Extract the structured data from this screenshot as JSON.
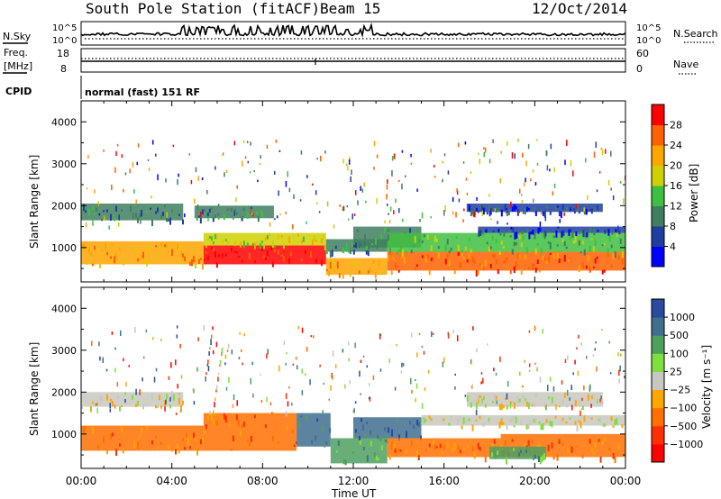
{
  "header": {
    "station": "South Pole Station (fitACF)",
    "beam": "Beam 15",
    "date": "12/Oct/2014"
  },
  "panels": {
    "nsky": {
      "label": "N.Sky",
      "ticks": [
        "10^5",
        "10^0"
      ],
      "right_ticks": [
        "10^5",
        "10^0"
      ],
      "right_label": "N.Search"
    },
    "freq": {
      "label_line1": "Freq.",
      "label_line2": "[MHz]",
      "ticks": [
        "18",
        "8"
      ],
      "right_ticks": [
        "60",
        "0"
      ],
      "right_label": "Nave"
    },
    "cpid": {
      "label": "CPID",
      "value": "normal (fast) 151 RF"
    }
  },
  "colors": {
    "power_scale": [
      "#0000ff",
      "#1f3fa0",
      "#3f7f5f",
      "#3fbf3f",
      "#d0d000",
      "#ffa500",
      "#ff6000",
      "#ff0000"
    ],
    "velocity_scale": [
      "#2a4aa0",
      "#3f6f8f",
      "#4f9f5f",
      "#7fdf3f",
      "#c8c8c0",
      "#ffa500",
      "#ff7000",
      "#ff3000",
      "#ff0000"
    ],
    "axis": "#000000"
  },
  "chart_data": [
    {
      "type": "heatmap",
      "ylabel": "Slant Range [km]",
      "colorbar_label": "Power [dB]",
      "colorbar_ticks": [
        "4",
        "8",
        "12",
        "16",
        "20",
        "24",
        "28"
      ],
      "ylim": [
        180,
        4500
      ],
      "yticks": [
        "1000",
        "2000",
        "3000",
        "4000"
      ],
      "xlim": [
        0,
        24
      ],
      "bands": [
        {
          "t0": 0.0,
          "t1": 5.4,
          "r0": 600,
          "r1": 1150,
          "level": 5
        },
        {
          "t0": 0.0,
          "t1": 4.5,
          "r0": 1650,
          "r1": 2050,
          "level": 2
        },
        {
          "t0": 5.4,
          "t1": 10.8,
          "r0": 600,
          "r1": 1050,
          "level": 7
        },
        {
          "t0": 5.4,
          "t1": 10.8,
          "r0": 1050,
          "r1": 1350,
          "level": 4
        },
        {
          "t0": 5.0,
          "t1": 8.5,
          "r0": 1700,
          "r1": 2000,
          "level": 2
        },
        {
          "t0": 10.8,
          "t1": 13.5,
          "r0": 350,
          "r1": 750,
          "level": 5
        },
        {
          "t0": 10.8,
          "t1": 13.5,
          "r0": 900,
          "r1": 1200,
          "level": 2
        },
        {
          "t0": 12.0,
          "t1": 15.0,
          "r0": 1000,
          "r1": 1500,
          "level": 2
        },
        {
          "t0": 13.5,
          "t1": 24.0,
          "r0": 450,
          "r1": 900,
          "level": 6
        },
        {
          "t0": 13.5,
          "t1": 24.0,
          "r0": 900,
          "r1": 1350,
          "level": 3
        },
        {
          "t0": 17.5,
          "t1": 24.0,
          "r0": 1350,
          "r1": 1500,
          "level": 1
        },
        {
          "t0": 17.0,
          "t1": 23.0,
          "r0": 1850,
          "r1": 2050,
          "level": 1
        }
      ]
    },
    {
      "type": "heatmap",
      "ylabel": "Slant Range [km]",
      "colorbar_label": "Velocity [m s⁻¹]",
      "colorbar_ticks": [
        "1000",
        "500",
        "100",
        "25",
        "−25",
        "−100",
        "−500",
        "−1000"
      ],
      "ylim": [
        180,
        4500
      ],
      "yticks": [
        "1000",
        "2000",
        "3000",
        "4000"
      ],
      "xlim": [
        0,
        24
      ],
      "xticks": [
        "00:00",
        "04:00",
        "08:00",
        "12:00",
        "16:00",
        "20:00",
        "00:00"
      ],
      "xlabel": "Time UT",
      "bands": [
        {
          "t0": 0.0,
          "t1": 5.4,
          "r0": 600,
          "r1": 1200,
          "level": 6
        },
        {
          "t0": 0.0,
          "t1": 4.5,
          "r0": 1650,
          "r1": 2000,
          "level": 4
        },
        {
          "t0": 5.4,
          "t1": 9.5,
          "r0": 600,
          "r1": 1500,
          "level": 6
        },
        {
          "t0": 9.5,
          "t1": 11.0,
          "r0": 700,
          "r1": 1500,
          "level": 1
        },
        {
          "t0": 11.0,
          "t1": 13.5,
          "r0": 300,
          "r1": 900,
          "level": 2
        },
        {
          "t0": 12.0,
          "t1": 15.0,
          "r0": 900,
          "r1": 1400,
          "level": 1
        },
        {
          "t0": 13.5,
          "t1": 18.5,
          "r0": 450,
          "r1": 900,
          "level": 6
        },
        {
          "t0": 18.5,
          "t1": 24.0,
          "r0": 450,
          "r1": 1000,
          "level": 6
        },
        {
          "t0": 18.0,
          "t1": 20.5,
          "r0": 400,
          "r1": 700,
          "level": 2
        },
        {
          "t0": 15.0,
          "t1": 24.0,
          "r0": 1200,
          "r1": 1450,
          "level": 4
        },
        {
          "t0": 17.0,
          "t1": 23.0,
          "r0": 1650,
          "r1": 2000,
          "level": 4
        }
      ]
    }
  ]
}
